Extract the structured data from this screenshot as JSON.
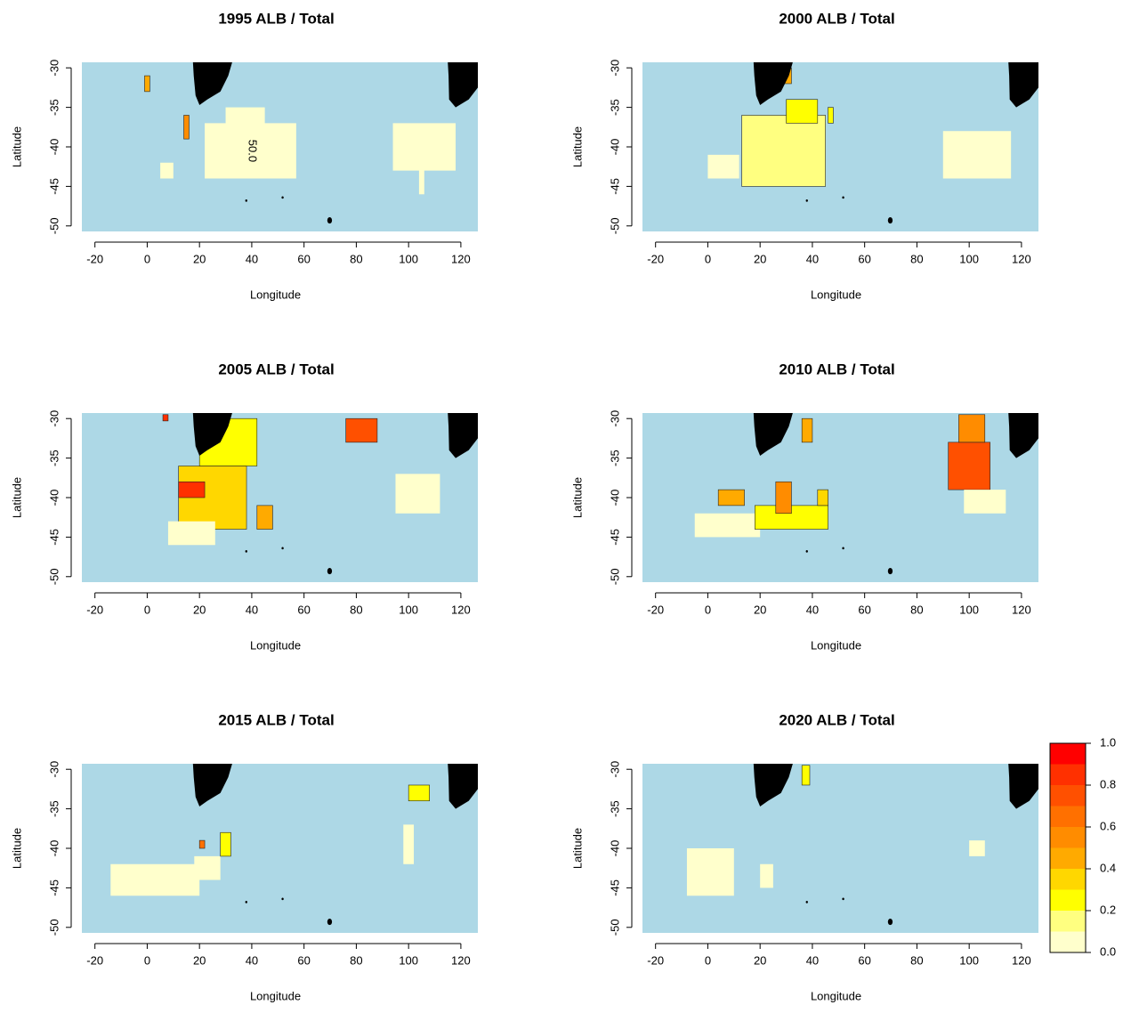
{
  "chart_data": [
    {
      "type": "map",
      "title": "1995 ALB / Total",
      "xlabel": "Longitude",
      "ylabel": "Latitude",
      "xlim": [
        -25,
        126.5
      ],
      "ylim": [
        -50.7,
        -29.3
      ],
      "xticks": [
        -20,
        0,
        20,
        40,
        60,
        80,
        100,
        120
      ],
      "yticks": [
        -50,
        -45,
        -40,
        -35,
        -30
      ],
      "annotation": "50.0",
      "regions": [
        {
          "lon": [
            22,
            57
          ],
          "lat": [
            -44,
            -37
          ],
          "value": 0.05
        },
        {
          "lon": [
            30,
            45
          ],
          "lat": [
            -38,
            -35
          ],
          "value": 0.05
        },
        {
          "lon": [
            94,
            118
          ],
          "lat": [
            -43,
            -37
          ],
          "value": 0.02
        },
        {
          "lon": [
            -1,
            1
          ],
          "lat": [
            -33,
            -31
          ],
          "value": 0.45
        },
        {
          "lon": [
            5,
            10
          ],
          "lat": [
            -44,
            -42
          ],
          "value": 0.05
        },
        {
          "lon": [
            14,
            16
          ],
          "lat": [
            -39,
            -36
          ],
          "value": 0.6
        },
        {
          "lon": [
            104,
            106
          ],
          "lat": [
            -46,
            -42
          ],
          "value": 0.02
        }
      ]
    },
    {
      "type": "map",
      "title": "2000 ALB / Total",
      "xlabel": "Longitude",
      "ylabel": "Latitude",
      "xlim": [
        -25,
        126.5
      ],
      "ylim": [
        -50.7,
        -29.3
      ],
      "xticks": [
        -20,
        0,
        20,
        40,
        60,
        80,
        100,
        120
      ],
      "yticks": [
        -50,
        -45,
        -40,
        -35,
        -30
      ],
      "regions": [
        {
          "lon": [
            13,
            45
          ],
          "lat": [
            -45,
            -36
          ],
          "value": 0.15
        },
        {
          "lon": [
            30,
            42
          ],
          "lat": [
            -37,
            -34
          ],
          "value": 0.25
        },
        {
          "lon": [
            28,
            32
          ],
          "lat": [
            -32,
            -30
          ],
          "value": 0.5
        },
        {
          "lon": [
            90,
            116
          ],
          "lat": [
            -44,
            -38
          ],
          "value": 0.02
        },
        {
          "lon": [
            0,
            12
          ],
          "lat": [
            -44,
            -41
          ],
          "value": 0.02
        },
        {
          "lon": [
            46,
            48
          ],
          "lat": [
            -37,
            -35
          ],
          "value": 0.3
        }
      ]
    },
    {
      "type": "map",
      "title": "2005 ALB / Total",
      "xlabel": "Longitude",
      "ylabel": "Latitude",
      "xlim": [
        -25,
        126.5
      ],
      "ylim": [
        -50.7,
        -29.3
      ],
      "xticks": [
        -20,
        0,
        20,
        40,
        60,
        80,
        100,
        120
      ],
      "yticks": [
        -50,
        -45,
        -40,
        -35,
        -30
      ],
      "regions": [
        {
          "lon": [
            12,
            38
          ],
          "lat": [
            -44,
            -36
          ],
          "value": 0.35
        },
        {
          "lon": [
            20,
            42
          ],
          "lat": [
            -36,
            -30
          ],
          "value": 0.3
        },
        {
          "lon": [
            12,
            22
          ],
          "lat": [
            -40,
            -38
          ],
          "value": 0.85
        },
        {
          "lon": [
            76,
            88
          ],
          "lat": [
            -33,
            -30
          ],
          "value": 0.75
        },
        {
          "lon": [
            95,
            112
          ],
          "lat": [
            -42,
            -37
          ],
          "value": 0.05
        },
        {
          "lon": [
            8,
            26
          ],
          "lat": [
            -46,
            -43
          ],
          "value": 0.05
        },
        {
          "lon": [
            6,
            8
          ],
          "lat": [
            -30.3,
            -29.5
          ],
          "value": 0.9
        },
        {
          "lon": [
            42,
            48
          ],
          "lat": [
            -44,
            -41
          ],
          "value": 0.5
        }
      ]
    },
    {
      "type": "map",
      "title": "2010 ALB / Total",
      "xlabel": "Longitude",
      "ylabel": "Latitude",
      "xlim": [
        -25,
        126.5
      ],
      "ylim": [
        -50.7,
        -29.3
      ],
      "xticks": [
        -20,
        0,
        20,
        40,
        60,
        80,
        100,
        120
      ],
      "yticks": [
        -50,
        -45,
        -40,
        -35,
        -30
      ],
      "regions": [
        {
          "lon": [
            92,
            108
          ],
          "lat": [
            -39,
            -33
          ],
          "value": 0.75
        },
        {
          "lon": [
            96,
            106
          ],
          "lat": [
            -33,
            -29.5
          ],
          "value": 0.55
        },
        {
          "lon": [
            98,
            114
          ],
          "lat": [
            -42,
            -39
          ],
          "value": 0.02
        },
        {
          "lon": [
            -5,
            20
          ],
          "lat": [
            -45,
            -42
          ],
          "value": 0.02
        },
        {
          "lon": [
            18,
            46
          ],
          "lat": [
            -44,
            -41
          ],
          "value": 0.3
        },
        {
          "lon": [
            4,
            14
          ],
          "lat": [
            -41,
            -39
          ],
          "value": 0.5
        },
        {
          "lon": [
            26,
            32
          ],
          "lat": [
            -42,
            -38
          ],
          "value": 0.6
        },
        {
          "lon": [
            36,
            40
          ],
          "lat": [
            -33,
            -30
          ],
          "value": 0.45
        },
        {
          "lon": [
            42,
            46
          ],
          "lat": [
            -41,
            -39
          ],
          "value": 0.4
        }
      ]
    },
    {
      "type": "map",
      "title": "2015 ALB / Total",
      "xlabel": "Longitude",
      "ylabel": "Latitude",
      "xlim": [
        -25,
        126.5
      ],
      "ylim": [
        -50.7,
        -29.3
      ],
      "xticks": [
        -20,
        0,
        20,
        40,
        60,
        80,
        100,
        120
      ],
      "yticks": [
        -50,
        -45,
        -40,
        -35,
        -30
      ],
      "regions": [
        {
          "lon": [
            -14,
            20
          ],
          "lat": [
            -46,
            -42
          ],
          "value": 0.02
        },
        {
          "lon": [
            18,
            28
          ],
          "lat": [
            -44,
            -41
          ],
          "value": 0.02
        },
        {
          "lon": [
            28,
            32
          ],
          "lat": [
            -41,
            -38
          ],
          "value": 0.3
        },
        {
          "lon": [
            100,
            108
          ],
          "lat": [
            -34,
            -32
          ],
          "value": 0.25
        },
        {
          "lon": [
            20,
            22
          ],
          "lat": [
            -40,
            -39
          ],
          "value": 0.7
        },
        {
          "lon": [
            98,
            102
          ],
          "lat": [
            -42,
            -37
          ],
          "value": 0.02
        }
      ]
    },
    {
      "type": "map",
      "title": "2020 ALB / Total",
      "xlabel": "Longitude",
      "ylabel": "Latitude",
      "xlim": [
        -25,
        126.5
      ],
      "ylim": [
        -50.7,
        -29.3
      ],
      "xticks": [
        -20,
        0,
        20,
        40,
        60,
        80,
        100,
        120
      ],
      "yticks": [
        -50,
        -45,
        -40,
        -35,
        -30
      ],
      "regions": [
        {
          "lon": [
            -8,
            10
          ],
          "lat": [
            -46,
            -40
          ],
          "value": 0.02
        },
        {
          "lon": [
            20,
            25
          ],
          "lat": [
            -45,
            -42
          ],
          "value": 0.02
        },
        {
          "lon": [
            100,
            106
          ],
          "lat": [
            -41,
            -39
          ],
          "value": 0.02
        },
        {
          "lon": [
            36,
            39
          ],
          "lat": [
            -32,
            -29.5
          ],
          "value": 0.3
        }
      ],
      "colorbar": {
        "breaks": [
          0,
          0.1,
          0.2,
          0.3,
          0.4,
          0.5,
          0.6,
          0.7,
          0.8,
          0.9,
          1
        ],
        "colors": [
          "#ffffcc",
          "#ffff80",
          "#ffff00",
          "#ffd700",
          "#ffaa00",
          "#ff8c00",
          "#ff7000",
          "#ff5000",
          "#ff3000",
          "#ff0000"
        ],
        "ticks": [
          {
            "value": 0,
            "label": "0.0"
          },
          {
            "value": 0.2,
            "label": "0.2"
          },
          {
            "value": 0.4,
            "label": "0.4"
          },
          {
            "value": 0.6,
            "label": "0.6"
          },
          {
            "value": 0.8,
            "label": "0.8"
          },
          {
            "value": 1,
            "label": "1.0"
          }
        ]
      }
    }
  ]
}
